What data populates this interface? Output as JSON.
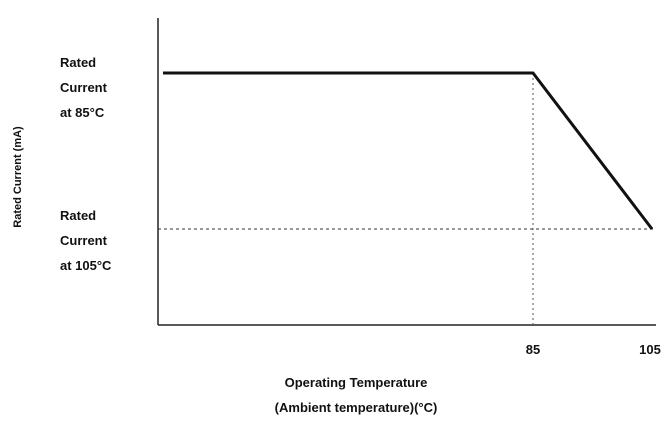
{
  "chart_data": {
    "type": "line",
    "ylabel": "Rated Current (mA)",
    "xlabel_line1": "Operating Temperature",
    "xlabel_line2": "(Ambient temperature)(°C)",
    "x_ticks": [
      "85",
      "105"
    ],
    "y_levels": [
      {
        "name": "rated_85",
        "lines": [
          "Rated",
          "Current",
          "at 85°C"
        ]
      },
      {
        "name": "rated_105",
        "lines": [
          "Rated",
          "Current",
          "at 105°C"
        ]
      }
    ],
    "series": [
      {
        "points": [
          {
            "x": "min",
            "y": "rated_85"
          },
          {
            "x": 85,
            "y": "rated_85"
          },
          {
            "x": 105,
            "y": "rated_105"
          }
        ]
      }
    ],
    "reference_lines": [
      {
        "type": "vertical",
        "x": 85,
        "style": "dotted"
      },
      {
        "type": "horizontal",
        "y": "rated_105",
        "style": "dashed"
      }
    ],
    "grid": false
  }
}
